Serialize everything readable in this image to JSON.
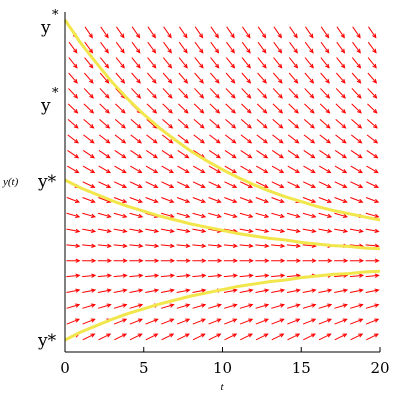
{
  "chart_data": {
    "type": "line",
    "title": "",
    "xlabel": "t",
    "ylabel": "y(t)",
    "xlim": [
      0,
      20
    ],
    "ylim": [
      0,
      4
    ],
    "x_ticks": [
      "0",
      "5",
      "10",
      "15",
      "20"
    ],
    "y_tick_labels": [
      {
        "base": "y",
        "sup": "*"
      },
      {
        "base": "y",
        "sup": "*"
      },
      {
        "base": "y*",
        "sup": ""
      },
      {
        "base": "y*",
        "sup": ""
      }
    ],
    "direction_field": {
      "equation_form": "dy/dt = r (Y - y)",
      "r": 0.1,
      "equilibrium_y": 1.0,
      "t_samples": 20,
      "y_samples": 22,
      "color": "#ff0000"
    },
    "series": [
      {
        "x": [
          0,
          1,
          2,
          3,
          4,
          5,
          6,
          7,
          8,
          9,
          10,
          11,
          12,
          13,
          14,
          15,
          16,
          17,
          18,
          19,
          20
        ],
        "values": [
          4.0,
          3.71,
          3.46,
          3.22,
          3.01,
          2.82,
          2.65,
          2.5,
          2.36,
          2.24,
          2.13,
          2.03,
          1.94,
          1.86,
          1.79,
          1.73,
          1.67,
          1.62,
          1.58,
          1.54,
          1.5
        ]
      },
      {
        "x": [
          0,
          1,
          2,
          3,
          4,
          5,
          6,
          7,
          8,
          9,
          10,
          11,
          12,
          13,
          14,
          15,
          16,
          17,
          18,
          19,
          20
        ],
        "values": [
          2.0,
          1.9,
          1.82,
          1.74,
          1.67,
          1.61,
          1.55,
          1.5,
          1.45,
          1.41,
          1.37,
          1.33,
          1.3,
          1.27,
          1.25,
          1.22,
          1.2,
          1.18,
          1.17,
          1.15,
          1.14
        ]
      },
      {
        "x": [
          0,
          1,
          2,
          3,
          4,
          5,
          6,
          7,
          8,
          9,
          10,
          11,
          12,
          13,
          14,
          15,
          16,
          17,
          18,
          19,
          20
        ],
        "values": [
          0.0,
          0.1,
          0.18,
          0.26,
          0.33,
          0.39,
          0.45,
          0.5,
          0.55,
          0.59,
          0.63,
          0.67,
          0.7,
          0.73,
          0.75,
          0.78,
          0.8,
          0.82,
          0.83,
          0.85,
          0.86
        ]
      }
    ],
    "curve_color": "#f2e64d",
    "grid": false
  }
}
